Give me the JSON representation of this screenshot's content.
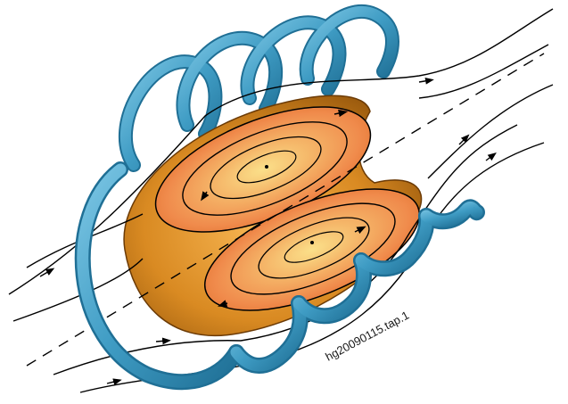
{
  "figure": {
    "label": "hg20090115.tap.1",
    "colors": {
      "coil": "#3f9cc4",
      "coil_dark": "#1f6f95",
      "coil_light": "#7cc6e4",
      "plasma_outer": "#b86d10",
      "plasma_mid": "#e0962a",
      "plasma_inner": "#f28a4c",
      "plasma_core": "#fbe08a",
      "field_line": "#000000"
    },
    "elements": [
      "magnetic-coil",
      "plasma-torus",
      "flux-surfaces",
      "field-lines",
      "symmetry-axis"
    ]
  }
}
